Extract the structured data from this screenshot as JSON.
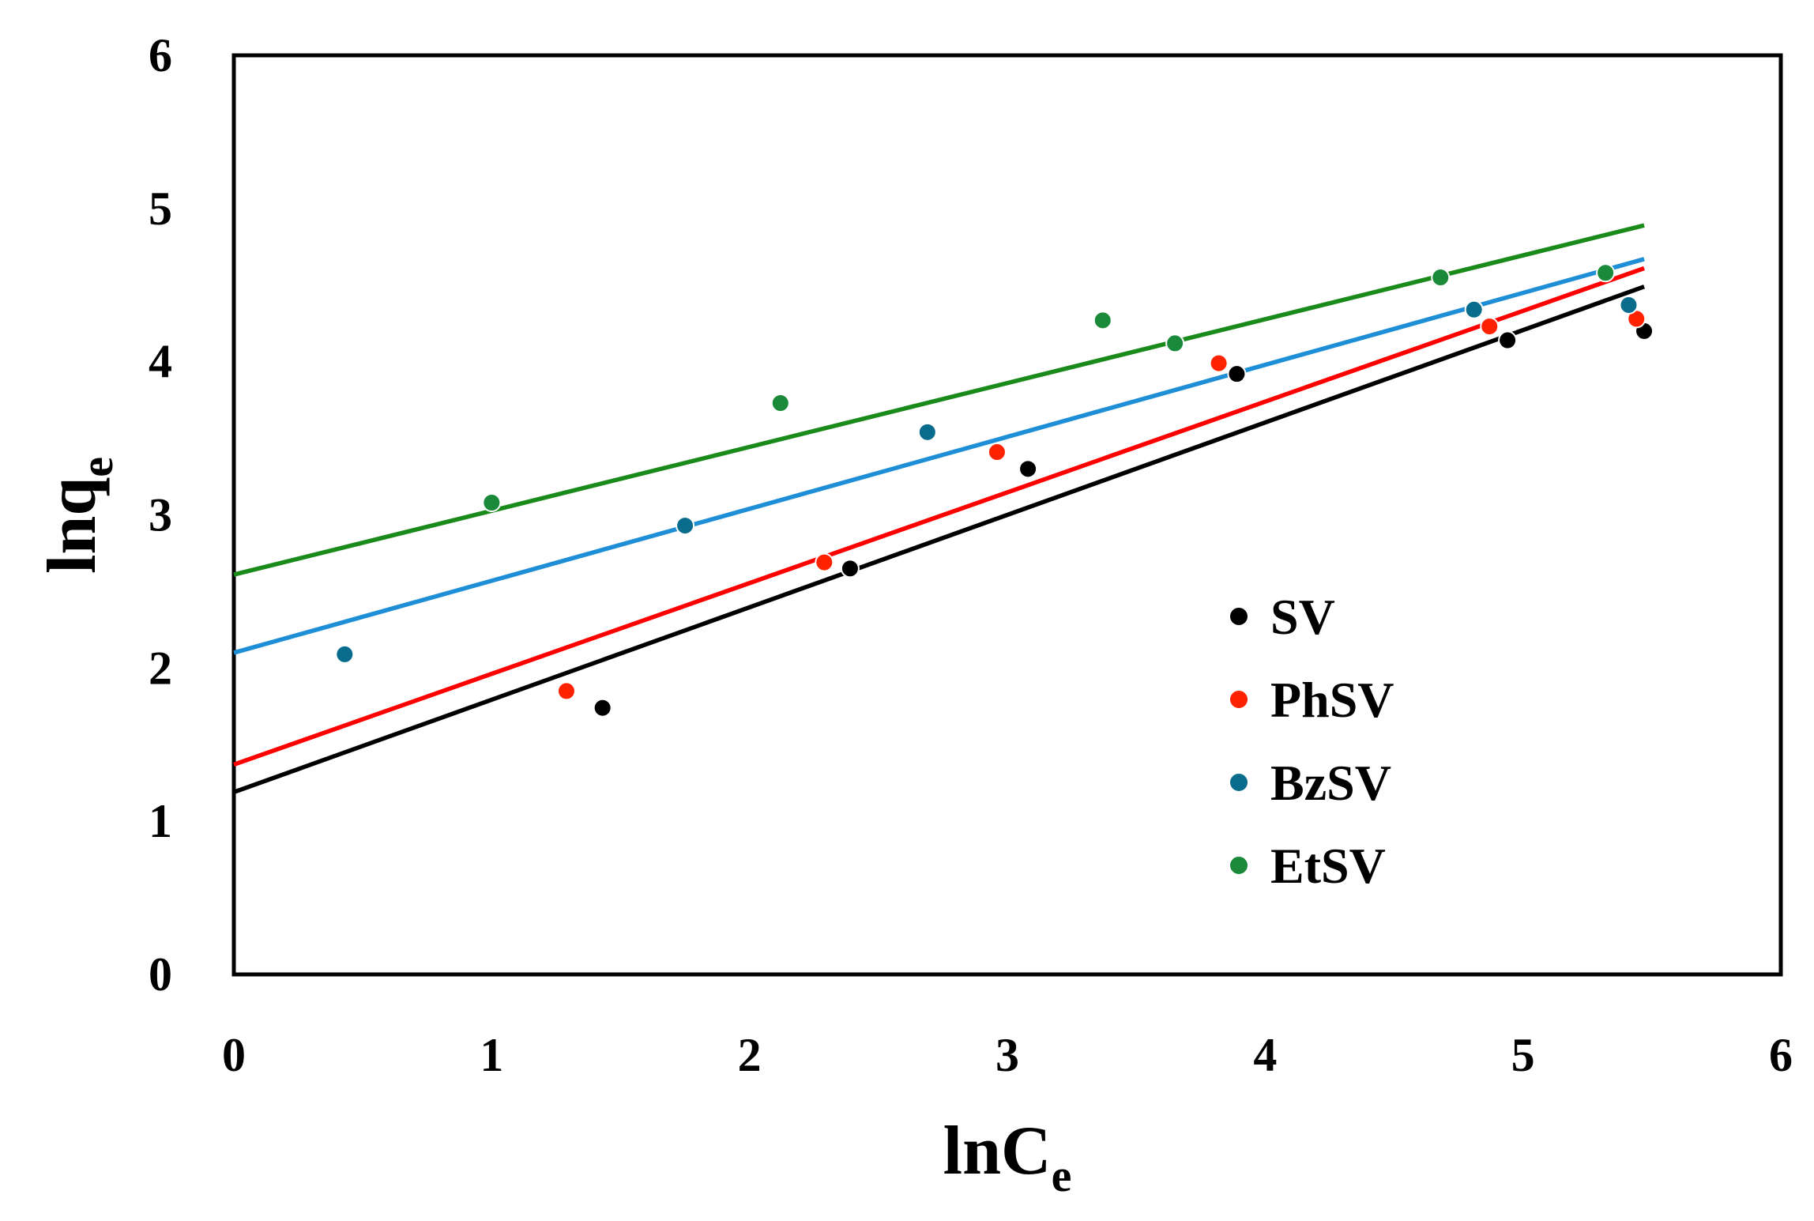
{
  "chart_data": {
    "type": "scatter",
    "title": "",
    "xlabel": "lnC",
    "xlabel_sub": "e",
    "ylabel": "lnq",
    "ylabel_sub": "e",
    "xlim": [
      0,
      6
    ],
    "ylim": [
      0,
      6
    ],
    "xticks": [
      "0",
      "1",
      "2",
      "3",
      "4",
      "5",
      "6"
    ],
    "yticks": [
      "0",
      "1",
      "2",
      "3",
      "4",
      "5",
      "6"
    ],
    "grid": false,
    "legend_position": "bottom-right",
    "series": [
      {
        "name": "SV",
        "color": "#000000",
        "line_color": "#000000",
        "x": [
          1.43,
          2.39,
          3.08,
          3.89,
          4.94,
          5.47
        ],
        "y": [
          1.74,
          2.65,
          3.3,
          3.92,
          4.14,
          4.2
        ],
        "fit": {
          "x": [
            0,
            5.47
          ],
          "y": [
            1.19,
            4.49
          ]
        }
      },
      {
        "name": "PhSV",
        "color": "#ff2200",
        "line_color": "#ff0000",
        "x": [
          1.29,
          2.29,
          2.96,
          3.82,
          4.87,
          5.44
        ],
        "y": [
          1.85,
          2.69,
          3.41,
          3.99,
          4.23,
          4.28
        ],
        "fit": {
          "x": [
            0,
            5.47
          ],
          "y": [
            1.37,
            4.61
          ]
        }
      },
      {
        "name": "BzSV",
        "color": "#0a6c8c",
        "line_color": "#1e8fd6",
        "x": [
          0.43,
          1.75,
          2.69,
          4.81,
          5.41
        ],
        "y": [
          2.09,
          2.93,
          3.54,
          4.34,
          4.37
        ],
        "fit": {
          "x": [
            0,
            5.47
          ],
          "y": [
            2.1,
            4.67
          ]
        }
      },
      {
        "name": "EtSV",
        "color": "#1a8a3a",
        "line_color": "#1a8a1a",
        "x": [
          1.0,
          2.12,
          3.37,
          3.65,
          4.68,
          5.32
        ],
        "y": [
          3.08,
          3.73,
          4.27,
          4.12,
          4.55,
          4.58
        ],
        "fit": {
          "x": [
            0,
            5.47
          ],
          "y": [
            2.61,
            4.89
          ]
        }
      }
    ]
  }
}
